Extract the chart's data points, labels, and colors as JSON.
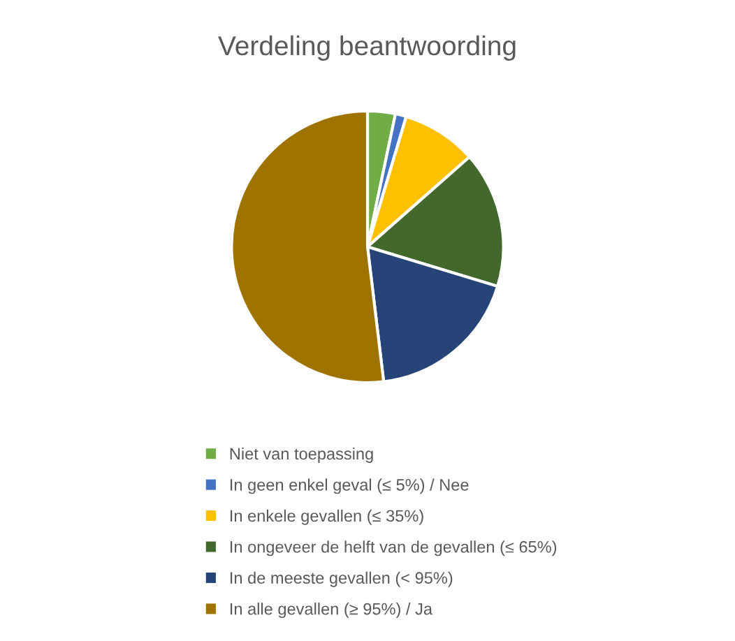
{
  "chart_data": {
    "type": "pie",
    "title": "Verdeling beantwoording",
    "categories": [
      "Niet van toepassing",
      "In geen enkel geval (≤ 5%) / Nee",
      "In enkele gevallen (≤ 35%)",
      "In ongeveer de helft van de gevallen (≤ 65%)",
      "In de meeste gevallen (< 95%)",
      "In alle gevallen (≥ 95%) / Ja"
    ],
    "values": [
      3.3,
      1.3,
      8.9,
      16.2,
      18.4,
      51.9
    ],
    "colors": [
      "#70ad47",
      "#4472c4",
      "#ffc000",
      "#43682b",
      "#264478",
      "#9e7300"
    ],
    "legend": "bottom"
  }
}
